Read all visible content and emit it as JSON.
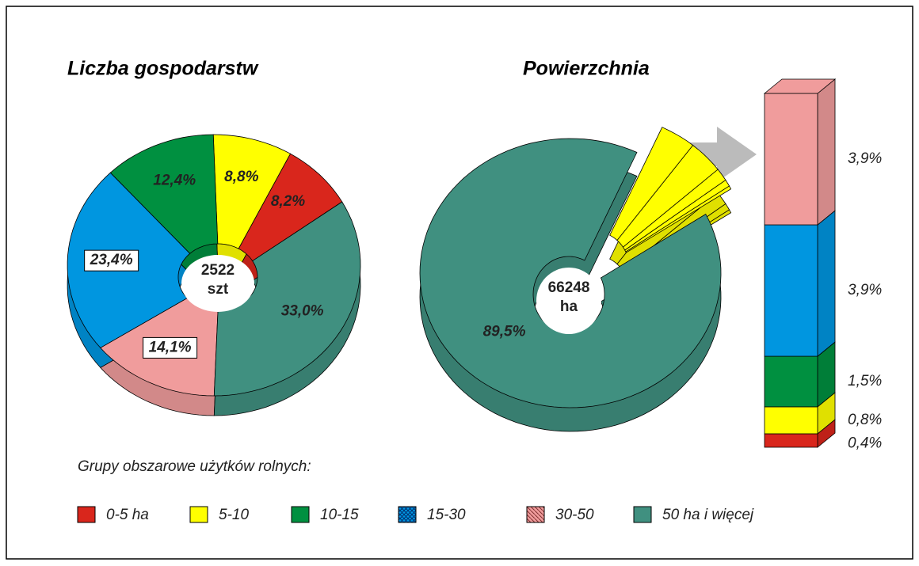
{
  "chart_data": [
    {
      "type": "donut",
      "title": "Liczba gospodarstw",
      "center_value": "2522",
      "center_unit": "szt",
      "values": [
        8.2,
        8.8,
        12.4,
        23.4,
        14.1,
        33.0
      ],
      "value_labels": [
        "8,2%",
        "8,8%",
        "12,4%",
        "23,4%",
        "14,1%",
        "33,0%"
      ]
    },
    {
      "type": "donut-bar",
      "title": "Powierzchnia",
      "center_value": "66248",
      "center_unit": "ha",
      "values": [
        0.4,
        0.8,
        1.5,
        3.9,
        3.9,
        89.5
      ],
      "value_labels": [
        "0,4%",
        "0,8%",
        "1,5%",
        "3,9%",
        "3,9%",
        "89,5%"
      ],
      "breakout_color": "#ffff00"
    }
  ],
  "legend": {
    "title": "Grupy obszarowe użytków rolnych:",
    "items": [
      {
        "name": "0-5 ha",
        "color": "#d9261c"
      },
      {
        "name": "5-10",
        "color": "#ffff00"
      },
      {
        "name": "10-15",
        "color": "#009040"
      },
      {
        "name": "15-30",
        "color": "#0096e0",
        "pattern": "crosshatch"
      },
      {
        "name": "30-50",
        "color": "#f09c9c",
        "pattern": "hatch"
      },
      {
        "name": "50 ha i więcej",
        "color": "#409080"
      }
    ]
  }
}
